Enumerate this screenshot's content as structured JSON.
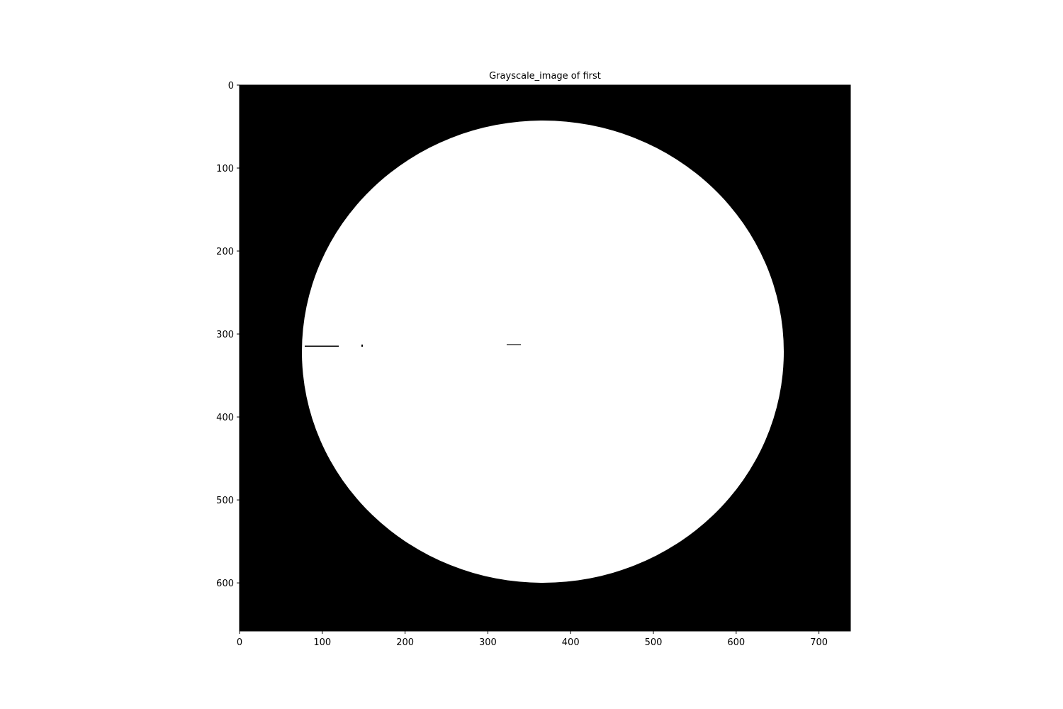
{
  "chart_data": {
    "type": "image",
    "title": "Grayscale_image of first",
    "xlim": [
      0,
      738
    ],
    "xticks": [
      0,
      100,
      200,
      300,
      400,
      500,
      600,
      700
    ],
    "ylim": [
      658,
      0
    ],
    "yticks": [
      0,
      100,
      200,
      300,
      400,
      500,
      600
    ]
  }
}
